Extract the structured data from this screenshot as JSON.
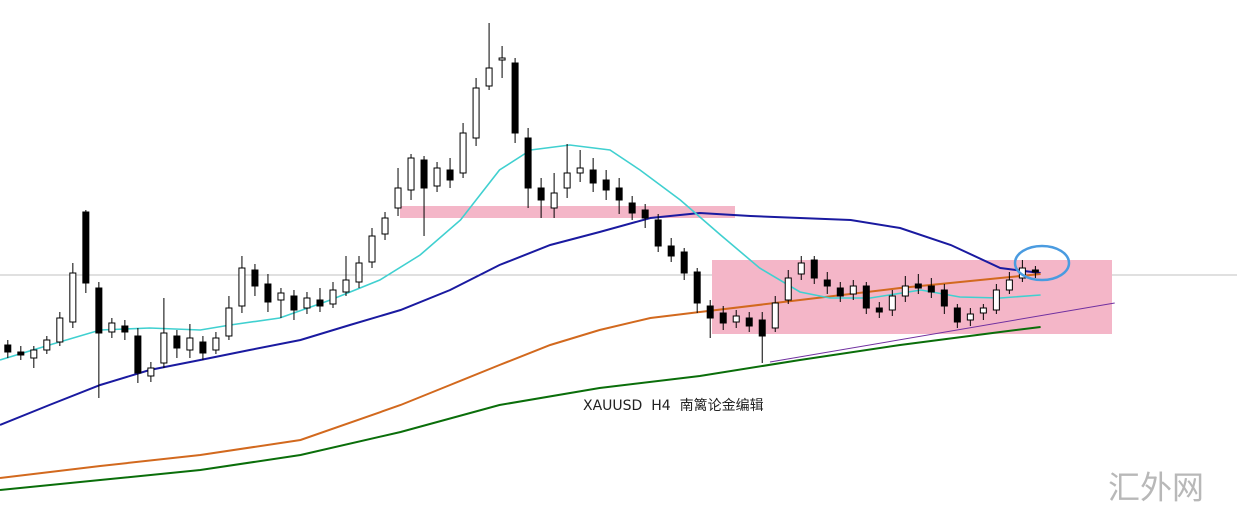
{
  "chart_data": {
    "type": "candlestick",
    "label": "XAUUSD  H4  南篱论金编辑",
    "watermark": "汇外网",
    "xlim": [
      -0.6,
      94.5
    ],
    "ylim": [
      0,
      518
    ],
    "price_line": 243,
    "price_line_color": "#c0c0c0",
    "up_color": "#ffffff",
    "down_color": "#000000",
    "edge_color": "#000000",
    "candles": {
      "open": [
        173,
        166,
        160,
        168,
        176,
        196,
        306,
        230,
        186,
        192,
        182,
        142,
        155,
        182,
        168,
        176,
        168,
        182,
        212,
        248,
        234,
        218,
        222,
        210,
        218,
        214,
        226,
        236,
        256,
        284,
        310,
        328,
        358,
        332,
        348,
        345,
        380,
        432,
        458,
        455,
        380,
        330,
        310,
        330,
        345,
        348,
        338,
        330,
        315,
        308,
        298,
        272,
        266,
        246,
        212,
        205,
        196,
        200,
        198,
        190,
        218,
        244,
        258,
        238,
        230,
        224,
        232,
        210,
        208,
        222,
        234,
        232,
        228,
        210,
        198,
        205,
        208,
        228,
        240,
        248
      ],
      "close": [
        166,
        163,
        168,
        178,
        200,
        245,
        235,
        185,
        195,
        186,
        145,
        150,
        185,
        170,
        180,
        165,
        180,
        210,
        250,
        232,
        216,
        225,
        208,
        220,
        212,
        228,
        238,
        255,
        282,
        300,
        330,
        360,
        330,
        350,
        338,
        385,
        430,
        450,
        460,
        385,
        330,
        318,
        325,
        345,
        350,
        335,
        328,
        318,
        305,
        300,
        272,
        262,
        245,
        215,
        200,
        195,
        202,
        192,
        182,
        215,
        240,
        255,
        240,
        232,
        222,
        232,
        210,
        206,
        222,
        232,
        230,
        226,
        212,
        196,
        204,
        210,
        228,
        238,
        250,
        246
      ],
      "high": [
        178,
        172,
        172,
        182,
        206,
        255,
        308,
        236,
        200,
        198,
        190,
        156,
        220,
        188,
        194,
        182,
        186,
        222,
        262,
        254,
        244,
        230,
        228,
        226,
        230,
        236,
        262,
        262,
        290,
        306,
        350,
        364,
        362,
        356,
        360,
        395,
        440,
        495,
        472,
        460,
        390,
        340,
        345,
        374,
        368,
        360,
        348,
        340,
        322,
        314,
        304,
        280,
        270,
        250,
        218,
        212,
        208,
        206,
        206,
        222,
        248,
        262,
        262,
        246,
        236,
        238,
        236,
        216,
        228,
        242,
        244,
        240,
        234,
        214,
        210,
        214,
        234,
        246,
        258,
        252
      ],
      "low": [
        160,
        158,
        150,
        164,
        172,
        190,
        225,
        120,
        180,
        178,
        135,
        136,
        150,
        160,
        160,
        158,
        164,
        178,
        205,
        222,
        206,
        200,
        198,
        204,
        206,
        210,
        222,
        230,
        250,
        278,
        302,
        318,
        282,
        326,
        330,
        340,
        372,
        428,
        440,
        375,
        310,
        300,
        300,
        320,
        336,
        326,
        318,
        304,
        298,
        290,
        266,
        256,
        238,
        205,
        180,
        188,
        190,
        186,
        155,
        186,
        214,
        238,
        234,
        224,
        216,
        218,
        204,
        200,
        202,
        216,
        224,
        220,
        204,
        190,
        192,
        198,
        204,
        224,
        236,
        240
      ]
    },
    "lines": [
      {
        "color": "#1a1aa0",
        "width": 2,
        "x": [
          -0.6,
          3.2,
          7.1,
          10.9,
          14.8,
          18.6,
          22.5,
          26.3,
          30.2,
          34,
          37.8,
          41.7,
          45.5,
          49.4,
          53.2,
          57.1,
          60.9,
          64.8,
          68.6,
          72.5,
          76.3,
          79.4
        ],
        "values": [
          93,
          113,
          133,
          148,
          158,
          168,
          178,
          193,
          208,
          228,
          253,
          273,
          286,
          300,
          305,
          302,
          300,
          298,
          290,
          273,
          250,
          245
        ]
      },
      {
        "color": "#d2691e",
        "width": 2,
        "x": [
          -0.6,
          7.1,
          14.8,
          22.5,
          30.2,
          34,
          37.8,
          41.7,
          45.5,
          49.4,
          53.2,
          60.9,
          68.6,
          76.3,
          79.4
        ],
        "values": [
          40,
          52,
          63,
          78,
          113,
          133,
          153,
          173,
          188,
          200,
          206,
          218,
          230,
          240,
          244
        ]
      },
      {
        "color": "#0a6e0a",
        "width": 2,
        "x": [
          -0.6,
          7.1,
          14.8,
          22.5,
          30.2,
          37.8,
          45.5,
          53.2,
          60.9,
          68.6,
          76.3,
          79.4
        ],
        "values": [
          28,
          38,
          48,
          63,
          86,
          113,
          130,
          142,
          158,
          173,
          186,
          191
        ]
      },
      {
        "color": "#40d0d0",
        "width": 1.6,
        "x": [
          -0.6,
          3.2,
          7.1,
          10.9,
          14.8,
          17.1,
          20.9,
          24.8,
          28.6,
          31.7,
          34.8,
          37.8,
          40.2,
          43.2,
          46.3,
          48.6,
          51.7,
          54.8,
          57.8,
          60.9,
          63.2,
          66.3,
          70.2,
          73.2,
          76.3,
          79.4
        ],
        "values": [
          158,
          173,
          188,
          190,
          188,
          193,
          200,
          218,
          238,
          263,
          298,
          348,
          368,
          373,
          368,
          348,
          318,
          283,
          250,
          226,
          220,
          220,
          228,
          221,
          220,
          223
        ]
      },
      {
        "color": "#7030a0",
        "width": 1,
        "x": [
          58.6,
          85.1
        ],
        "values": [
          156,
          215
        ]
      }
    ]
  }
}
